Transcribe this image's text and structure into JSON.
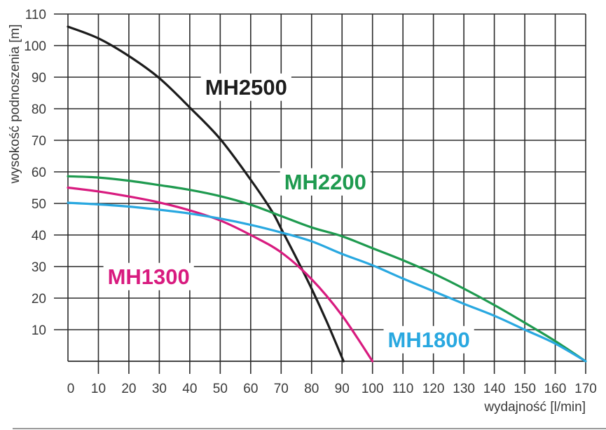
{
  "chart_data": {
    "type": "line",
    "title": "",
    "xlabel": "wydajność [l/min]",
    "ylabel": "wysokość podnoszenia [m]",
    "xlim": [
      0,
      170
    ],
    "ylim": [
      0,
      110
    ],
    "grid": true,
    "x_ticks": [
      0,
      10,
      20,
      30,
      40,
      50,
      60,
      70,
      80,
      90,
      100,
      110,
      120,
      130,
      140,
      150,
      160,
      170
    ],
    "y_ticks": [
      10,
      20,
      30,
      40,
      50,
      60,
      70,
      80,
      90,
      100,
      110
    ],
    "series": [
      {
        "name": "MH2500",
        "color": "#1c1c1c",
        "points": [
          [
            0,
            106
          ],
          [
            10,
            102.3
          ],
          [
            20,
            96.7
          ],
          [
            30,
            89.7
          ],
          [
            40,
            80.4
          ],
          [
            50,
            70.4
          ],
          [
            60,
            57.5
          ],
          [
            67,
            47.5
          ],
          [
            70,
            42
          ],
          [
            75,
            32.7
          ],
          [
            80,
            23
          ],
          [
            85,
            12.5
          ],
          [
            90.5,
            0
          ]
        ]
      },
      {
        "name": "MH2200",
        "color": "#1e9a4f",
        "points": [
          [
            0,
            58.6
          ],
          [
            10,
            58.2
          ],
          [
            20,
            57.2
          ],
          [
            30,
            55.8
          ],
          [
            40,
            54.3
          ],
          [
            50,
            52.3
          ],
          [
            60,
            49.6
          ],
          [
            70,
            46
          ],
          [
            80,
            42.4
          ],
          [
            90,
            39.6
          ],
          [
            100,
            35.8
          ],
          [
            110,
            32
          ],
          [
            120,
            27.8
          ],
          [
            130,
            23
          ],
          [
            140,
            17.8
          ],
          [
            150,
            12.2
          ],
          [
            160,
            6.4
          ],
          [
            170,
            0
          ]
        ]
      },
      {
        "name": "MH1300",
        "color": "#d81b7f",
        "points": [
          [
            0,
            55
          ],
          [
            10,
            53.8
          ],
          [
            20,
            52.2
          ],
          [
            30,
            50.3
          ],
          [
            40,
            47.8
          ],
          [
            50,
            44.6
          ],
          [
            60,
            40
          ],
          [
            70,
            34.5
          ],
          [
            80,
            26
          ],
          [
            90,
            14.5
          ],
          [
            100,
            0
          ]
        ]
      },
      {
        "name": "MH1800",
        "color": "#29a8e0",
        "points": [
          [
            0,
            50.2
          ],
          [
            10,
            49.7
          ],
          [
            20,
            49
          ],
          [
            30,
            48
          ],
          [
            40,
            46.8
          ],
          [
            50,
            45.2
          ],
          [
            60,
            43.2
          ],
          [
            70,
            40.8
          ],
          [
            80,
            38
          ],
          [
            90,
            34
          ],
          [
            100,
            30.4
          ],
          [
            110,
            26.2
          ],
          [
            120,
            22.2
          ],
          [
            130,
            18.2
          ],
          [
            140,
            14.4
          ],
          [
            150,
            10
          ],
          [
            160,
            5.6
          ],
          [
            170,
            0
          ]
        ]
      }
    ],
    "annotations": [
      {
        "text": "MH2500",
        "series": "MH2500",
        "x": 58.5,
        "y": 84.5
      },
      {
        "text": "MH2200",
        "series": "MH2200",
        "x": 84.5,
        "y": 54.5
      },
      {
        "text": "MH1300",
        "series": "MH1300",
        "x": 26.5,
        "y": 24.5
      },
      {
        "text": "MH1800",
        "series": "MH1800",
        "x": 118.5,
        "y": 4.5
      }
    ]
  }
}
